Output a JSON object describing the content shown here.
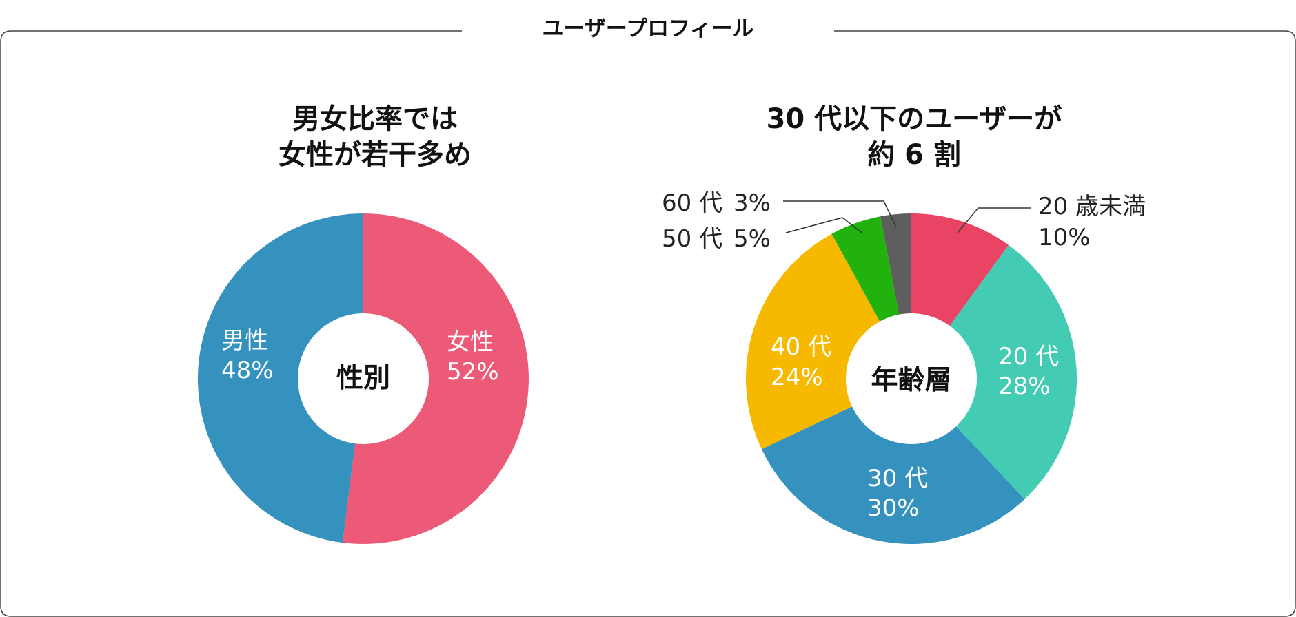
{
  "frame": {
    "title": "ユーザープロフィール"
  },
  "chart_data": [
    {
      "type": "pie",
      "variant": "donut",
      "title_lines": [
        "男女比率では",
        "女性が若干多め"
      ],
      "center_label": "性別",
      "slices": [
        {
          "label": "女性",
          "value_label": "52%",
          "value": 52,
          "color": "#ec5a78"
        },
        {
          "label": "男性",
          "value_label": "48%",
          "value": 48,
          "color": "#3591bd"
        }
      ]
    },
    {
      "type": "pie",
      "variant": "donut",
      "title_lines": [
        "30 代以下のユーザーが",
        "約 6 割"
      ],
      "center_label": "年齢層",
      "slices": [
        {
          "label": "20 歳未満",
          "value_label": "10%",
          "value": 10,
          "color": "#e94464"
        },
        {
          "label": "20 代",
          "value_label": "28%",
          "value": 28,
          "color": "#43cbb4"
        },
        {
          "label": "30 代",
          "value_label": "30%",
          "value": 30,
          "color": "#3591bd"
        },
        {
          "label": "40 代",
          "value_label": "24%",
          "value": 24,
          "color": "#f6b900"
        },
        {
          "label": "50 代",
          "value_label": "5%",
          "value": 5,
          "color": "#22b20d"
        },
        {
          "label": "60 代",
          "value_label": "3%",
          "value": 3,
          "color": "#5e5e5e"
        }
      ]
    }
  ]
}
